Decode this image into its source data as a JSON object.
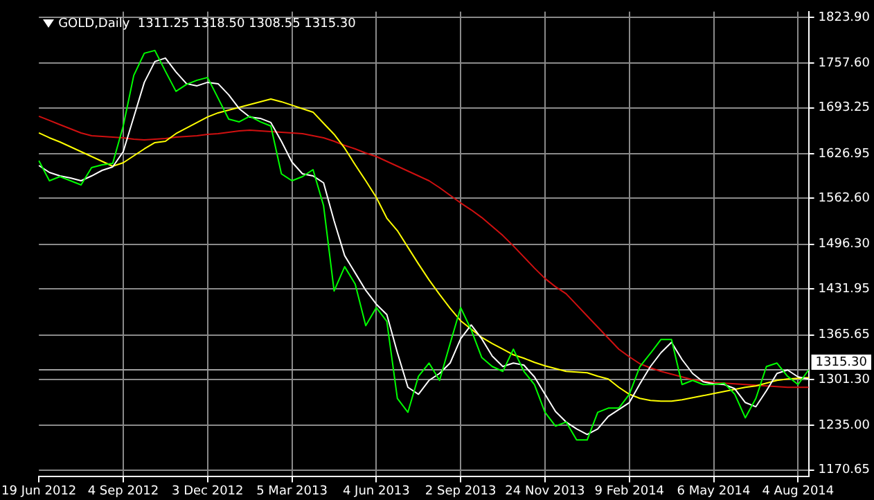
{
  "chart_data": {
    "type": "line",
    "title": "GOLD,Daily  1311.25 1318.50 1308.55 1315.30",
    "categories": [
      "19 Jun 2012",
      null,
      null,
      null,
      null,
      null,
      null,
      null,
      "4 Sep 2012",
      null,
      null,
      null,
      null,
      null,
      null,
      null,
      "3 Dec 2012",
      null,
      null,
      null,
      null,
      null,
      null,
      null,
      "5 Mar 2013",
      null,
      null,
      null,
      null,
      null,
      null,
      null,
      "4 Jun 2013",
      null,
      null,
      null,
      null,
      null,
      null,
      null,
      "2 Sep 2013",
      null,
      null,
      null,
      null,
      null,
      null,
      null,
      "24 Nov 2013",
      null,
      null,
      null,
      null,
      null,
      null,
      null,
      "9 Feb 2014",
      null,
      null,
      null,
      null,
      null,
      null,
      null,
      "6 May 2014",
      null,
      null,
      null,
      null,
      null,
      null,
      null,
      "4 Aug 2014",
      null
    ],
    "series": [
      {
        "color": "#00ff00",
        "values": [
          1617,
          1588,
          1594,
          1588,
          1582,
          1607,
          1611,
          1613,
          1667,
          1740,
          1772,
          1776,
          1746,
          1717,
          1727,
          1733,
          1737,
          1707,
          1677,
          1673,
          1681,
          1673,
          1667,
          1598,
          1588,
          1594,
          1604,
          1552,
          1429,
          1464,
          1439,
          1379,
          1405,
          1385,
          1274,
          1254,
          1306,
          1325,
          1300,
          1353,
          1405,
          1373,
          1333,
          1320,
          1313,
          1345,
          1313,
          1294,
          1254,
          1234,
          1240,
          1214,
          1214,
          1254,
          1260,
          1260,
          1280,
          1320,
          1339,
          1359,
          1359,
          1294,
          1300,
          1294,
          1294,
          1296,
          1280,
          1246,
          1274,
          1320,
          1325,
          1306,
          1294,
          1315
        ]
      },
      {
        "color": "#ffffff",
        "values": [
          1610,
          1600,
          1595,
          1592,
          1588,
          1595,
          1603,
          1608,
          1630,
          1680,
          1730,
          1760,
          1765,
          1745,
          1728,
          1725,
          1730,
          1728,
          1712,
          1692,
          1680,
          1678,
          1672,
          1645,
          1615,
          1598,
          1595,
          1585,
          1530,
          1480,
          1455,
          1430,
          1410,
          1395,
          1340,
          1290,
          1280,
          1300,
          1310,
          1325,
          1360,
          1380,
          1360,
          1335,
          1320,
          1325,
          1322,
          1305,
          1280,
          1255,
          1240,
          1230,
          1222,
          1230,
          1248,
          1258,
          1268,
          1295,
          1320,
          1340,
          1355,
          1330,
          1310,
          1298,
          1295,
          1294,
          1288,
          1268,
          1262,
          1285,
          1310,
          1315,
          1305,
          1302
        ]
      },
      {
        "color": "#ffff00",
        "values": [
          1657,
          1650,
          1644,
          1637,
          1630,
          1623,
          1616,
          1609,
          1614,
          1624,
          1634,
          1643,
          1645,
          1656,
          1664,
          1672,
          1680,
          1686,
          1690,
          1694,
          1698,
          1702,
          1706,
          1702,
          1697,
          1692,
          1687,
          1671,
          1655,
          1635,
          1611,
          1588,
          1564,
          1534,
          1516,
          1492,
          1468,
          1445,
          1424,
          1404,
          1386,
          1374,
          1362,
          1353,
          1345,
          1337,
          1332,
          1326,
          1321,
          1317,
          1313,
          1312,
          1311,
          1306,
          1302,
          1290,
          1280,
          1274,
          1271,
          1270,
          1270,
          1272,
          1275,
          1278,
          1281,
          1284,
          1287,
          1290,
          1292,
          1296,
          1300,
          1302,
          1303,
          1304
        ]
      },
      {
        "color": "#d01010",
        "values": [
          1681,
          1675,
          1669,
          1663,
          1657,
          1653,
          1652,
          1651,
          1650,
          1648,
          1647,
          1648,
          1649,
          1651,
          1652,
          1653,
          1655,
          1656,
          1658,
          1660,
          1661,
          1660,
          1659,
          1658,
          1657,
          1656,
          1653,
          1650,
          1645,
          1639,
          1634,
          1628,
          1623,
          1616,
          1609,
          1602,
          1595,
          1588,
          1578,
          1567,
          1556,
          1546,
          1535,
          1522,
          1509,
          1494,
          1478,
          1462,
          1447,
          1435,
          1425,
          1409,
          1393,
          1377,
          1361,
          1345,
          1334,
          1324,
          1318,
          1313,
          1309,
          1305,
          1301,
          1299,
          1297,
          1296,
          1295,
          1294,
          1293,
          1292,
          1291,
          1290,
          1290,
          1290
        ]
      }
    ],
    "ylim": [
      1161,
      1832
    ],
    "yticks": [
      {
        "value": 1823.9,
        "label": "1823.90"
      },
      {
        "value": 1757.6,
        "label": "1757.60"
      },
      {
        "value": 1693.25,
        "label": "1693.25"
      },
      {
        "value": 1626.95,
        "label": "1626.95"
      },
      {
        "value": 1562.6,
        "label": "1562.60"
      },
      {
        "value": 1496.3,
        "label": "1496.30"
      },
      {
        "value": 1431.95,
        "label": "1431.95"
      },
      {
        "value": 1365.65,
        "label": "1365.65"
      },
      {
        "value": 1301.3,
        "label": "1301.30"
      },
      {
        "value": 1235,
        "label": "1235.00"
      },
      {
        "value": 1170.65,
        "label": "1170.65"
      }
    ],
    "ref_lines": [
      {
        "axis": "y",
        "value": 1315.3,
        "label": "1315.30",
        "color": "#a0a0a0"
      }
    ],
    "grid": true,
    "legend": false,
    "marker": "none",
    "line_style": "solid"
  }
}
